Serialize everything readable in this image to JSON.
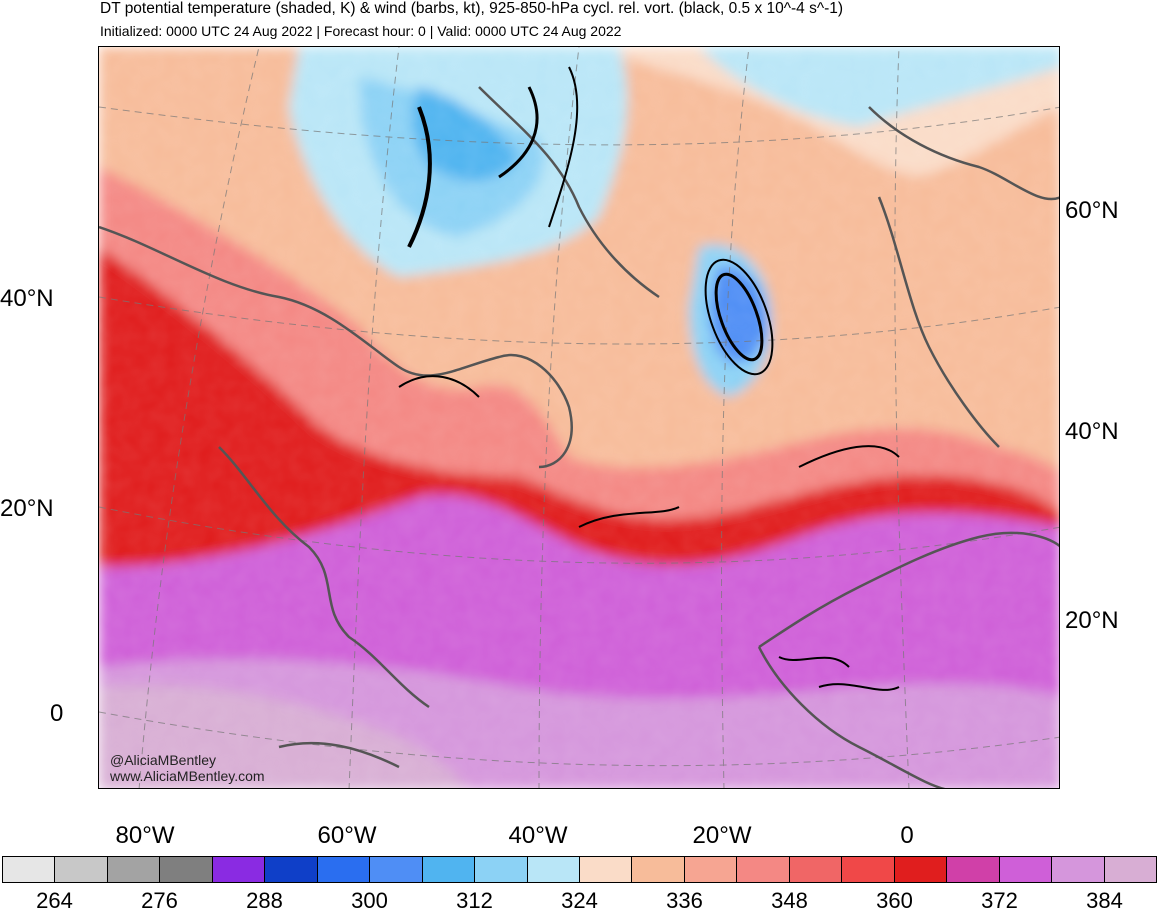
{
  "title": "DT potential temperature (shaded, K) & wind (barbs, kt), 925-850-hPa cycl. rel. vort. (black, 0.5 x 10^-4 s^-1)",
  "subtitle": "Initialized: 0000 UTC 24 Aug 2022 | Forecast hour: 0 | Valid: 0000 UTC 24 Aug 2022",
  "lat_labels_left": [
    "40°N",
    "20°N",
    "0"
  ],
  "lat_labels_right": [
    "60°N",
    "40°N",
    "20°N"
  ],
  "lon_labels": [
    "80°W",
    "60°W",
    "40°W",
    "20°W",
    "0"
  ],
  "watermark": {
    "handle": "@AliciaMBentley",
    "site": "www.AliciaMBentley.com"
  },
  "colorbar": {
    "colors": [
      "#e6e6e6",
      "#c8c8c8",
      "#a3a3a3",
      "#7f7f7f",
      "#8a2be2",
      "#0f3fc8",
      "#2a6ef0",
      "#4f8ef5",
      "#50b4f0",
      "#8cd2f5",
      "#b9e6f7",
      "#fadcc8",
      "#f7bc9a",
      "#f6a592",
      "#f48884",
      "#f06666",
      "#f04848",
      "#e01e1e",
      "#d040a8",
      "#cf5fd8",
      "#d596dc",
      "#d8aed4"
    ],
    "labels": [
      "264",
      "276",
      "288",
      "300",
      "312",
      "324",
      "336",
      "348",
      "360",
      "372",
      "384"
    ]
  },
  "map_colors": {
    "ocean_cold": "#b9e6f7",
    "cold_core": "#4f8ef5",
    "mid": "#f7bc9a",
    "warm": "#f48884",
    "hot": "#e01e1e",
    "tropical": "#cf5fd8",
    "equatorial": "#d8aed4",
    "contour": "#000000",
    "coast": "#555555"
  }
}
